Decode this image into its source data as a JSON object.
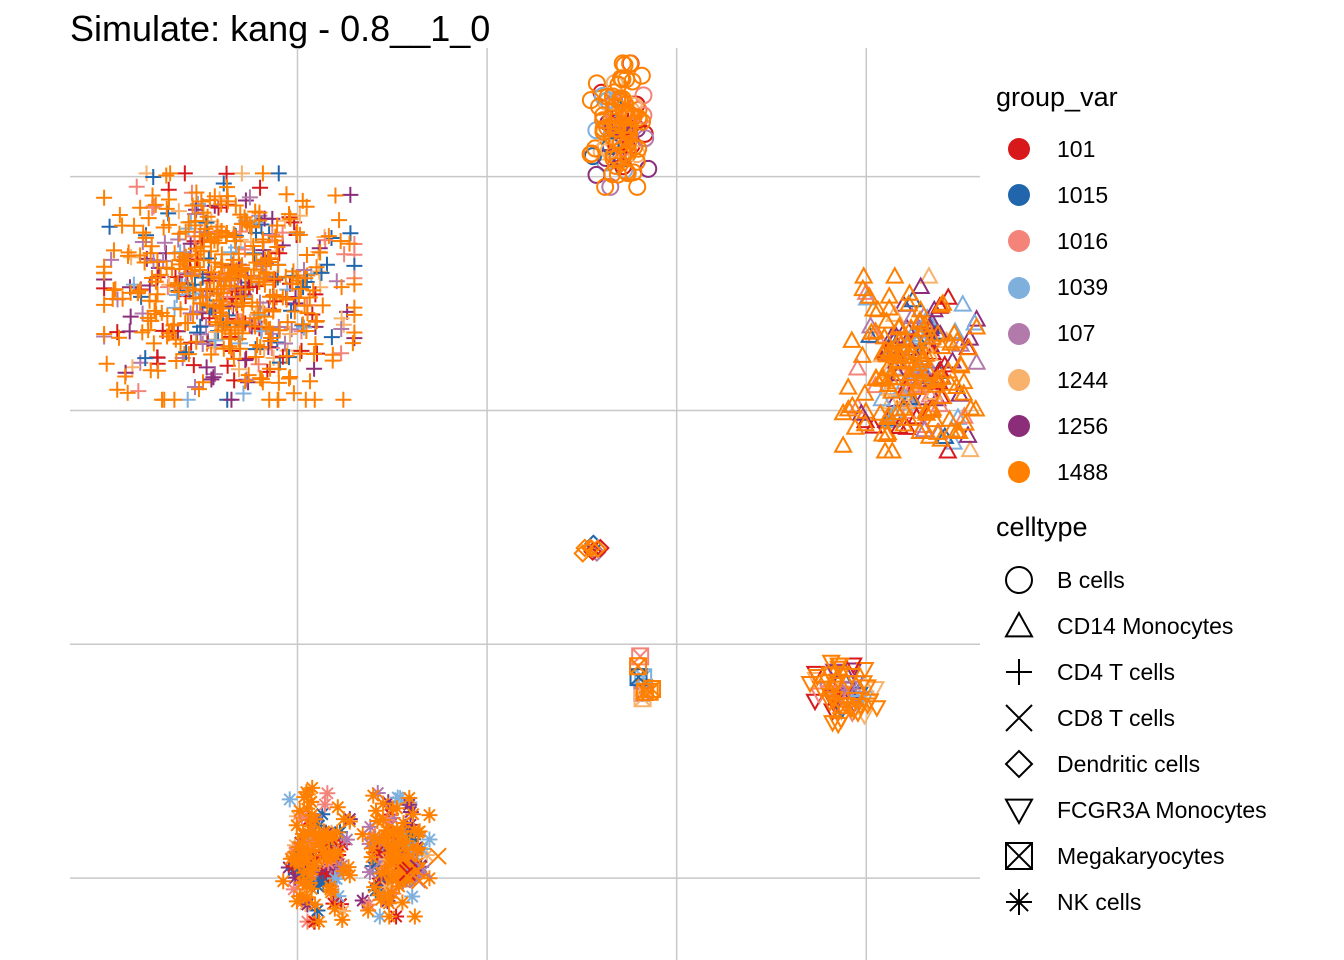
{
  "chart_data": {
    "type": "scatter",
    "title": "Simulate: kang - 0.8__1_0",
    "xlabel": "",
    "ylabel": "",
    "grid": true,
    "axis_ticks_shown": false,
    "legend_position": "right",
    "legends": [
      {
        "title": "group_var",
        "aesthetic": "color",
        "items": [
          {
            "label": "101",
            "color": "#D7191C"
          },
          {
            "label": "1015",
            "color": "#2166AC"
          },
          {
            "label": "1016",
            "color": "#F4847A"
          },
          {
            "label": "1039",
            "color": "#7FB0DD"
          },
          {
            "label": "107",
            "color": "#B27AAB"
          },
          {
            "label": "1244",
            "color": "#F9B26B"
          },
          {
            "label": "1256",
            "color": "#8C2D7A"
          },
          {
            "label": "1488",
            "color": "#FF7F00"
          }
        ]
      },
      {
        "title": "celltype",
        "aesthetic": "shape",
        "items": [
          {
            "label": "B cells",
            "shape": "circle-open"
          },
          {
            "label": "CD14 Monocytes",
            "shape": "triangle-open"
          },
          {
            "label": "CD4 T cells",
            "shape": "plus"
          },
          {
            "label": "CD8 T cells",
            "shape": "cross"
          },
          {
            "label": "Dendritic cells",
            "shape": "diamond-open"
          },
          {
            "label": "FCGR3A Monocytes",
            "shape": "triangle-down-open"
          },
          {
            "label": "Megakaryocytes",
            "shape": "square-cross"
          },
          {
            "label": "NK cells",
            "shape": "asterisk"
          }
        ]
      }
    ],
    "xlim": [
      -1.2,
      3.6
    ],
    "ylim": [
      -3.35,
      0.55
    ],
    "grid_x": [
      0,
      1,
      2,
      3
    ],
    "grid_y": [
      -3,
      -2,
      -1,
      0
    ],
    "clusters": [
      {
        "celltype": "B cells",
        "center": [
          1.7,
          0.22
        ],
        "spread": [
          0.07,
          0.12
        ],
        "n": 130
      },
      {
        "celltype": "CD4 T cells",
        "center": [
          -0.36,
          -0.47
        ],
        "spread": [
          0.3,
          0.22
        ],
        "n": 650
      },
      {
        "celltype": "CD14 Monocytes",
        "center": [
          3.23,
          -0.8
        ],
        "spread": [
          0.16,
          0.17
        ],
        "n": 260
      },
      {
        "celltype": "Dendritic cells",
        "center": [
          1.55,
          -1.6
        ],
        "spread": [
          0.035,
          0.02
        ],
        "n": 10
      },
      {
        "celltype": "Megakaryocytes",
        "center": [
          1.83,
          -2.18
        ],
        "spread": [
          0.025,
          0.06
        ],
        "n": 10
      },
      {
        "celltype": "FCGR3A Monocytes",
        "center": [
          2.88,
          -2.2
        ],
        "spread": [
          0.08,
          0.07
        ],
        "n": 70
      },
      {
        "celltype": "NK cells",
        "center": [
          0.52,
          -2.9
        ],
        "spread": [
          0.08,
          0.12
        ],
        "n": 160
      },
      {
        "celltype": "CD8 T cells",
        "center": [
          0.62,
          -2.95
        ],
        "spread": [
          0.06,
          0.04
        ],
        "n": 10
      },
      {
        "celltype": "NK cells",
        "center": [
          0.1,
          -2.9
        ],
        "spread": [
          0.08,
          0.13
        ],
        "n": 170
      }
    ]
  }
}
